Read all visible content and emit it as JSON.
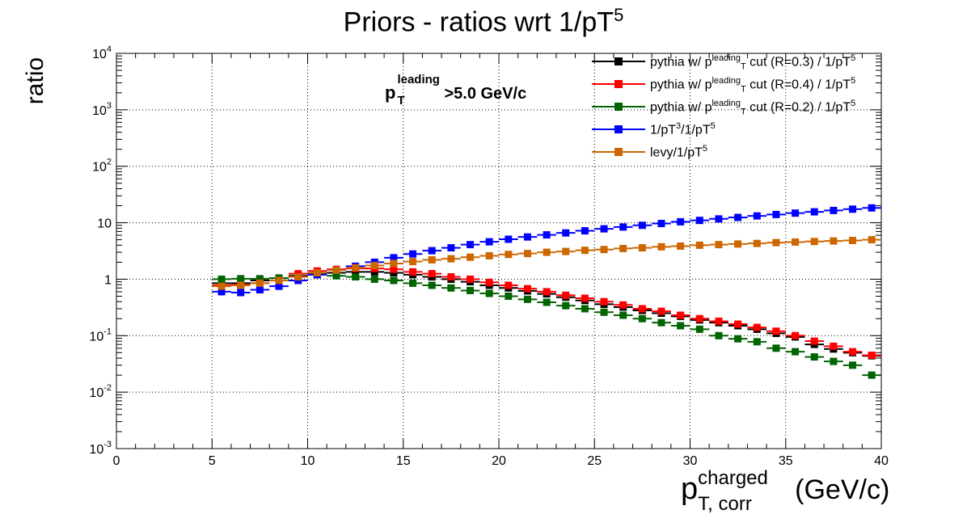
{
  "chart_data": {
    "type": "scatter",
    "title": "Priors - ratios wrt 1/pT",
    "title_superscript": "5",
    "ylabel": "ratio",
    "xlabel": {
      "base": "p",
      "superscript": "charged",
      "subscript": "T, corr",
      "unit": "(GeV/c)"
    },
    "annotation": {
      "base": "p",
      "superscript": "leading",
      "subscript": "T",
      "text": ">5.0 GeV/c"
    },
    "xlim": [
      0,
      40
    ],
    "ylim": [
      0.001,
      10000
    ],
    "ylog": true,
    "grid": true,
    "legend_position": "top-right",
    "x_ticks": [
      "0",
      "5",
      "10",
      "15",
      "20",
      "25",
      "30",
      "35",
      "40"
    ],
    "y_ticks": [
      {
        "base": "10",
        "exp": "-3"
      },
      {
        "base": "10",
        "exp": "-2"
      },
      {
        "base": "10",
        "exp": "-1"
      },
      {
        "base": "1",
        "exp": ""
      },
      {
        "base": "10",
        "exp": ""
      },
      {
        "base": "10",
        "exp": "2"
      },
      {
        "base": "10",
        "exp": "3"
      },
      {
        "base": "10",
        "exp": "4"
      }
    ],
    "x": [
      5.5,
      6.5,
      7.5,
      8.5,
      9.5,
      10.5,
      11.5,
      12.5,
      13.5,
      14.5,
      15.5,
      16.5,
      17.5,
      18.5,
      19.5,
      20.5,
      21.5,
      22.5,
      23.5,
      24.5,
      25.5,
      26.5,
      27.5,
      28.5,
      29.5,
      30.5,
      31.5,
      32.5,
      33.5,
      34.5,
      35.5,
      36.5,
      37.5,
      38.5,
      39.5
    ],
    "series": [
      {
        "legend": {
          "pre": "pythia w/ p",
          "sup": "leading",
          "sub": "T",
          "post": " cut (R=0.3) / 1/pT",
          "post_sup": "5"
        },
        "color": "#000000",
        "values": [
          0.85,
          0.85,
          0.95,
          1.05,
          1.15,
          1.25,
          1.3,
          1.35,
          1.35,
          1.3,
          1.2,
          1.1,
          1.0,
          0.9,
          0.78,
          0.7,
          0.62,
          0.55,
          0.48,
          0.42,
          0.36,
          0.32,
          0.28,
          0.25,
          0.22,
          0.19,
          0.17,
          0.15,
          0.13,
          0.11,
          0.095,
          0.07,
          0.058,
          0.05,
          0.044
        ]
      },
      {
        "legend": {
          "pre": "pythia w/ p",
          "sup": "leading",
          "sub": "T",
          "post": " cut (R=0.4) / 1/pT",
          "post_sup": "5"
        },
        "color": "#ff0000",
        "values": [
          0.78,
          0.8,
          0.85,
          0.95,
          1.25,
          1.4,
          1.5,
          1.55,
          1.55,
          1.5,
          1.35,
          1.25,
          1.1,
          1.0,
          0.88,
          0.78,
          0.68,
          0.6,
          0.52,
          0.46,
          0.4,
          0.35,
          0.3,
          0.27,
          0.23,
          0.2,
          0.18,
          0.16,
          0.14,
          0.12,
          0.1,
          0.08,
          0.065,
          0.052,
          0.045
        ]
      },
      {
        "legend": {
          "pre": "pythia w/ p",
          "sup": "leading",
          "sub": "T",
          "post": " cut (R=0.2) / 1/pT",
          "post_sup": "5"
        },
        "color": "#006400",
        "values": [
          1.0,
          1.02,
          1.02,
          1.05,
          1.1,
          1.2,
          1.15,
          1.1,
          1.0,
          0.95,
          0.85,
          0.78,
          0.7,
          0.63,
          0.56,
          0.5,
          0.44,
          0.39,
          0.34,
          0.3,
          0.26,
          0.23,
          0.2,
          0.17,
          0.15,
          0.13,
          0.1,
          0.088,
          0.078,
          0.06,
          0.052,
          0.042,
          0.035,
          0.03,
          0.02
        ]
      },
      {
        "legend": {
          "pre": "1/pT",
          "sup": "3",
          "post": "/1/pT",
          "post_sup": "5"
        },
        "color": "#0000ff",
        "values": [
          0.6,
          0.58,
          0.65,
          0.75,
          0.95,
          1.2,
          1.45,
          1.7,
          2.0,
          2.4,
          2.8,
          3.2,
          3.6,
          4.1,
          4.6,
          5.1,
          5.6,
          6.1,
          6.6,
          7.2,
          7.8,
          8.4,
          9.0,
          9.7,
          10.4,
          11.0,
          11.7,
          12.4,
          13.2,
          14.0,
          14.8,
          15.6,
          16.5,
          17.4,
          18.3
        ]
      },
      {
        "legend": {
          "pre": "levy/1/pT",
          "post_sup": "5"
        },
        "color": "#cc6600",
        "values": [
          0.75,
          0.78,
          0.85,
          0.95,
          1.1,
          1.3,
          1.45,
          1.6,
          1.75,
          1.9,
          2.05,
          2.2,
          2.3,
          2.45,
          2.6,
          2.75,
          2.85,
          3.0,
          3.1,
          3.25,
          3.35,
          3.5,
          3.6,
          3.75,
          3.85,
          4.0,
          4.1,
          4.2,
          4.3,
          4.45,
          4.55,
          4.65,
          4.75,
          4.85,
          5.0
        ]
      }
    ]
  }
}
